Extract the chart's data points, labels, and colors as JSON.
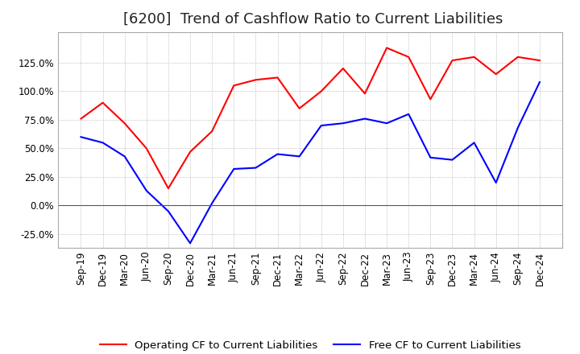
{
  "title": "[6200]  Trend of Cashflow Ratio to Current Liabilities",
  "x_labels": [
    "Sep-19",
    "Dec-19",
    "Mar-20",
    "Jun-20",
    "Sep-20",
    "Dec-20",
    "Mar-21",
    "Jun-21",
    "Sep-21",
    "Dec-21",
    "Mar-22",
    "Jun-22",
    "Sep-22",
    "Dec-22",
    "Mar-23",
    "Jun-23",
    "Sep-23",
    "Dec-23",
    "Mar-24",
    "Jun-24",
    "Sep-24",
    "Dec-24"
  ],
  "operating_cf": [
    0.76,
    0.9,
    0.72,
    0.5,
    0.15,
    0.47,
    0.65,
    1.05,
    1.1,
    1.12,
    0.85,
    1.0,
    1.2,
    0.98,
    1.38,
    1.3,
    0.93,
    1.27,
    1.3,
    1.15,
    1.3,
    1.27
  ],
  "free_cf": [
    0.6,
    0.55,
    0.43,
    0.13,
    -0.05,
    -0.33,
    0.02,
    0.32,
    0.33,
    0.45,
    0.43,
    0.7,
    0.72,
    0.76,
    0.72,
    0.8,
    0.42,
    0.4,
    0.55,
    0.2,
    0.68,
    1.08
  ],
  "operating_color": "#ff0000",
  "free_color": "#0000ff",
  "ylim": [
    -0.37,
    1.52
  ],
  "yticks": [
    -0.25,
    0.0,
    0.25,
    0.5,
    0.75,
    1.0,
    1.25
  ],
  "legend_operating": "Operating CF to Current Liabilities",
  "legend_free": "Free CF to Current Liabilities",
  "title_fontsize": 13,
  "axis_fontsize": 8.5,
  "legend_fontsize": 9.5
}
